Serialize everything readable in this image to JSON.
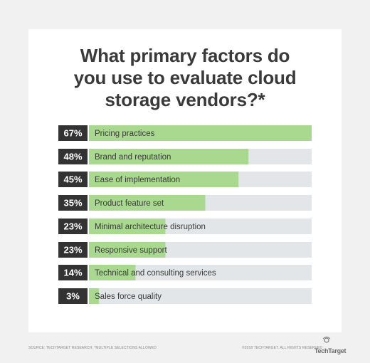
{
  "chart_data": {
    "type": "bar",
    "orientation": "horizontal",
    "title_lines": [
      "What primary factors do",
      "you use to evaluate cloud",
      "storage vendors?*"
    ],
    "categories": [
      "Pricing practices",
      "Brand and reputation",
      "Ease of implementation",
      "Product feature set",
      "Minimal architecture disruption",
      "Responsive support",
      "Technical and consulting services",
      "Sales force quality"
    ],
    "values": [
      67,
      48,
      45,
      35,
      23,
      23,
      14,
      3
    ],
    "value_labels": [
      "67%",
      "48%",
      "45%",
      "35%",
      "23%",
      "23%",
      "14%",
      "3%"
    ],
    "xlim": [
      0,
      67
    ],
    "grid": false,
    "legend": "none",
    "colors": {
      "fill": "#a8d98f",
      "track": "#e3e6e8",
      "label_box": "#333333",
      "title": "#3a3a3a"
    }
  },
  "footer": {
    "source": "SOURCE: TECHTARGET RESEARCH; *MULTIPLE SELECTIONS ALLOWED",
    "copyright": "©2018 TECHTARGET. ALL RIGHTS RESERVED",
    "brand": "TechTarget",
    "brand_icon": "techtarget-logo-icon"
  }
}
